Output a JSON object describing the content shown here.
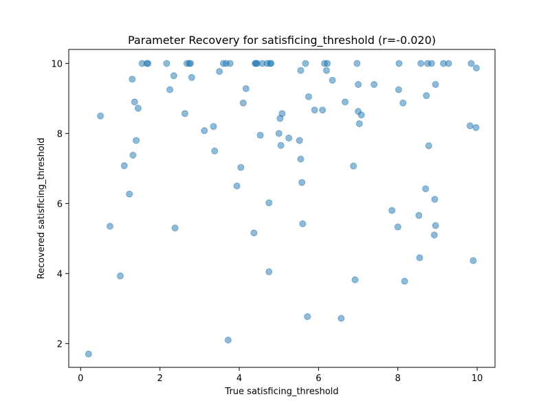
{
  "chart_data": {
    "type": "scatter",
    "title": "Parameter Recovery for satisficing_threshold (r=-0.020)",
    "xlabel": "True satisficing_threshold",
    "ylabel": "Recovered satisficing_threshold",
    "xlim": [
      -0.3,
      10.45
    ],
    "ylim": [
      1.32,
      10.4
    ],
    "xticks": [
      0,
      2,
      4,
      6,
      8,
      10
    ],
    "yticks": [
      2,
      4,
      6,
      8,
      10
    ],
    "grid": false,
    "marker_color": "#1f77b4",
    "marker_alpha": 0.5,
    "series": [
      {
        "points": [
          [
            0.2,
            1.7
          ],
          [
            0.5,
            8.5
          ],
          [
            0.74,
            5.35
          ],
          [
            1.0,
            3.93
          ],
          [
            1.1,
            7.08
          ],
          [
            1.23,
            6.27
          ],
          [
            1.3,
            9.55
          ],
          [
            1.32,
            7.38
          ],
          [
            1.36,
            8.9
          ],
          [
            1.4,
            7.8
          ],
          [
            1.45,
            8.72
          ],
          [
            1.55,
            10.0
          ],
          [
            1.67,
            10.0
          ],
          [
            1.7,
            10.0
          ],
          [
            2.17,
            10.0
          ],
          [
            2.25,
            9.25
          ],
          [
            2.35,
            9.65
          ],
          [
            2.38,
            5.3
          ],
          [
            2.63,
            8.57
          ],
          [
            2.68,
            10.0
          ],
          [
            2.74,
            10.0
          ],
          [
            2.77,
            10.0
          ],
          [
            2.8,
            9.6
          ],
          [
            3.12,
            8.08
          ],
          [
            3.35,
            8.2
          ],
          [
            3.38,
            7.5
          ],
          [
            3.5,
            9.77
          ],
          [
            3.6,
            10.0
          ],
          [
            3.67,
            10.0
          ],
          [
            3.77,
            10.0
          ],
          [
            3.72,
            2.1
          ],
          [
            3.94,
            6.5
          ],
          [
            4.04,
            7.03
          ],
          [
            4.1,
            8.87
          ],
          [
            4.17,
            9.28
          ],
          [
            4.37,
            5.16
          ],
          [
            4.4,
            10.0
          ],
          [
            4.42,
            10.0
          ],
          [
            4.45,
            10.0
          ],
          [
            4.53,
            7.95
          ],
          [
            4.58,
            10.0
          ],
          [
            4.7,
            10.0
          ],
          [
            4.75,
            6.02
          ],
          [
            4.75,
            4.05
          ],
          [
            4.78,
            10.0
          ],
          [
            4.8,
            10.0
          ],
          [
            5.0,
            8.0
          ],
          [
            5.03,
            8.43
          ],
          [
            5.05,
            7.66
          ],
          [
            5.08,
            8.57
          ],
          [
            5.25,
            7.87
          ],
          [
            5.52,
            7.8
          ],
          [
            5.55,
            9.8
          ],
          [
            5.55,
            7.27
          ],
          [
            5.58,
            6.6
          ],
          [
            5.6,
            5.42
          ],
          [
            5.67,
            10.0
          ],
          [
            5.72,
            2.77
          ],
          [
            5.75,
            9.05
          ],
          [
            5.9,
            8.67
          ],
          [
            6.1,
            8.67
          ],
          [
            6.15,
            10.0
          ],
          [
            6.2,
            9.8
          ],
          [
            6.22,
            10.0
          ],
          [
            6.35,
            9.52
          ],
          [
            6.57,
            2.72
          ],
          [
            6.67,
            8.9
          ],
          [
            6.88,
            7.07
          ],
          [
            6.92,
            3.82
          ],
          [
            6.97,
            10.0
          ],
          [
            7.0,
            9.4
          ],
          [
            7.0,
            8.63
          ],
          [
            7.03,
            8.28
          ],
          [
            7.08,
            8.53
          ],
          [
            7.4,
            9.4
          ],
          [
            7.85,
            5.8
          ],
          [
            8.0,
            5.33
          ],
          [
            8.02,
            9.25
          ],
          [
            8.03,
            10.0
          ],
          [
            8.13,
            8.87
          ],
          [
            8.17,
            3.78
          ],
          [
            8.53,
            5.66
          ],
          [
            8.55,
            4.45
          ],
          [
            8.58,
            10.0
          ],
          [
            8.7,
            6.42
          ],
          [
            8.72,
            9.08
          ],
          [
            8.75,
            10.0
          ],
          [
            8.78,
            7.65
          ],
          [
            8.85,
            10.0
          ],
          [
            8.92,
            5.1
          ],
          [
            8.93,
            6.12
          ],
          [
            8.95,
            9.4
          ],
          [
            8.95,
            5.37
          ],
          [
            9.15,
            10.0
          ],
          [
            9.28,
            10.0
          ],
          [
            9.82,
            8.22
          ],
          [
            9.85,
            10.0
          ],
          [
            9.9,
            4.37
          ],
          [
            9.97,
            8.17
          ],
          [
            9.98,
            9.87
          ]
        ]
      }
    ]
  }
}
